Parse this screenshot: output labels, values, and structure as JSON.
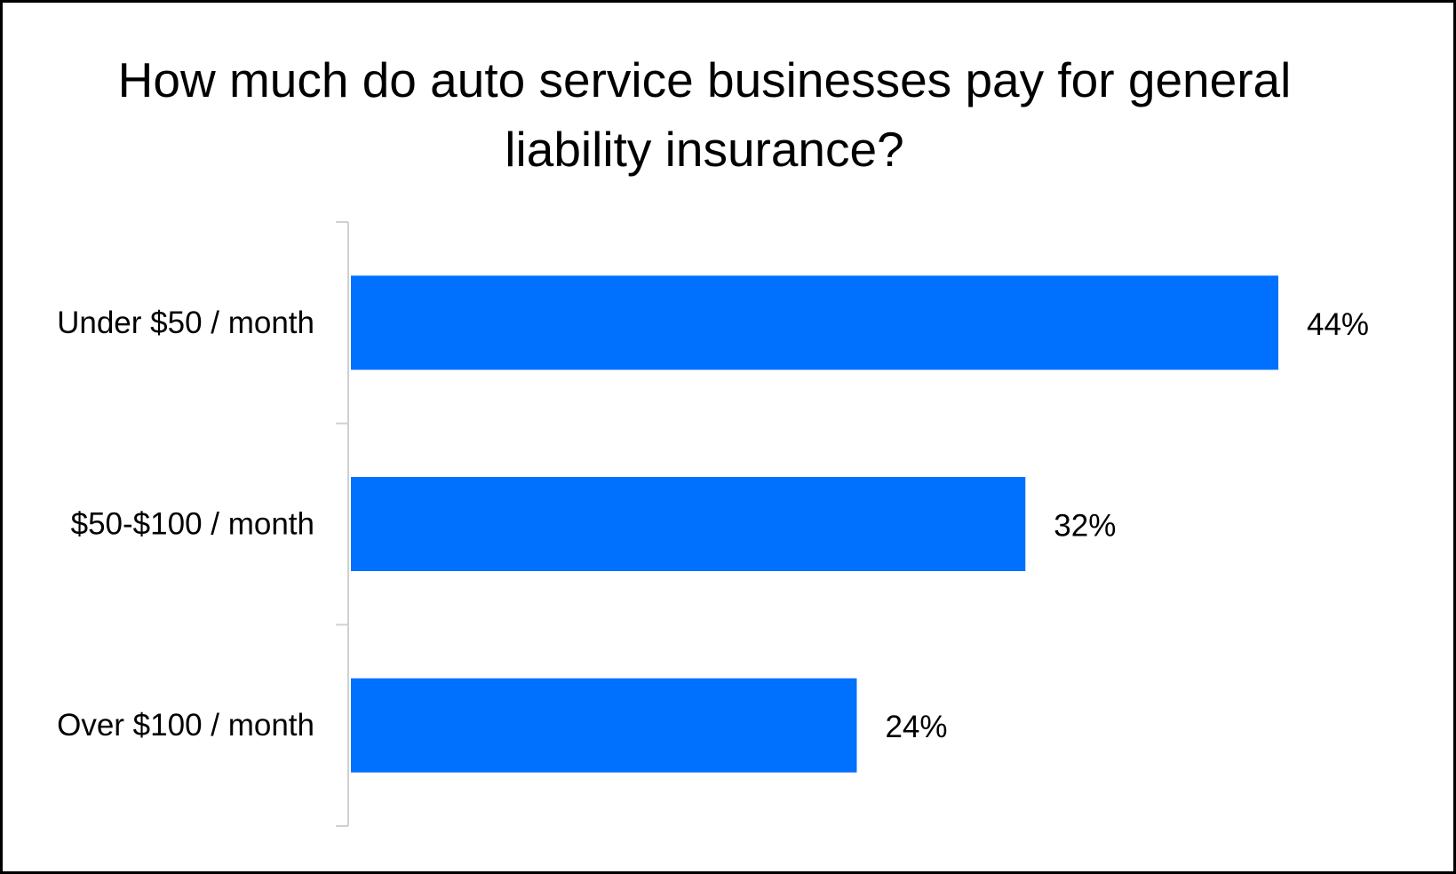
{
  "chart_data": {
    "type": "bar",
    "orientation": "horizontal",
    "title": "How much do auto service businesses pay for general liability insurance?",
    "categories": [
      "Under $50 / month",
      "$50-$100 / month",
      "Over $100 / month"
    ],
    "values": [
      44,
      32,
      24
    ],
    "value_labels": [
      "44%",
      "32%",
      "24%"
    ],
    "xlim": [
      0,
      50
    ],
    "color": "#0070FF",
    "grid": false,
    "legend": "none"
  }
}
